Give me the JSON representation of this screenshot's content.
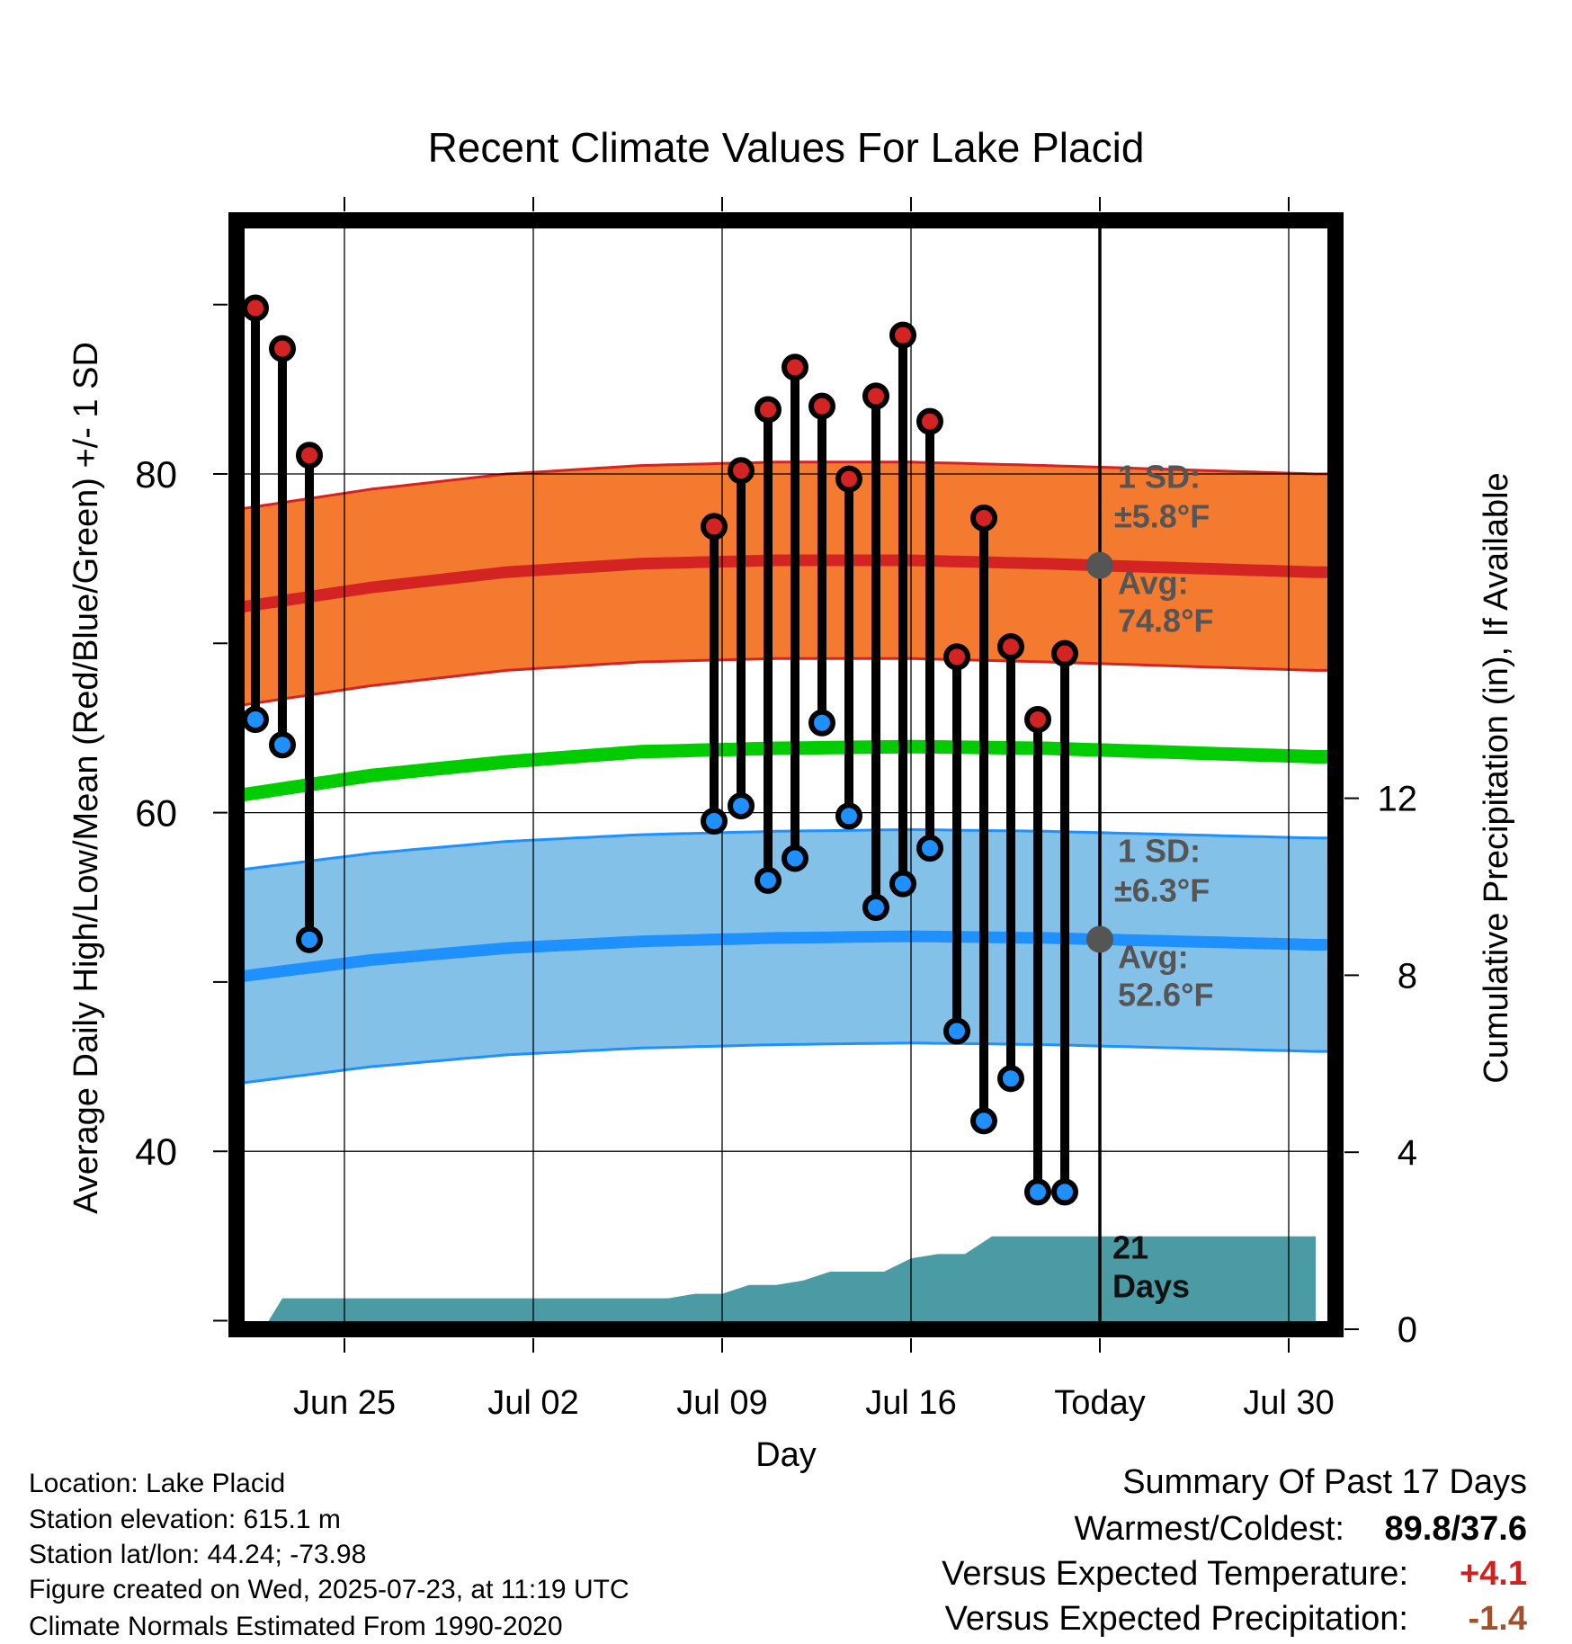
{
  "chart_data": {
    "type": "line",
    "title": "Recent Climate Values For Lake Placid",
    "xlabel": "Day",
    "ylabel": "Average Daily High/Low/Mean (Red/Blue/Green) +/- 1 SD",
    "y2label": "Cumulative Precipitation (in), If Available",
    "ylim": [
      30,
      95
    ],
    "y2lim": [
      0,
      24
    ],
    "xlim": [
      0,
      34
    ],
    "x_ticks": [
      {
        "day": 4,
        "label": "Jun 25"
      },
      {
        "day": 11,
        "label": "Jul 02"
      },
      {
        "day": 18,
        "label": "Jul 09"
      },
      {
        "day": 25,
        "label": "Jul 16"
      },
      {
        "day": 32,
        "label": "Today"
      },
      {
        "day": 39,
        "label": "Jul 30"
      }
    ],
    "y_ticks": [
      40,
      60,
      80
    ],
    "y2_ticks": [
      0,
      4,
      8,
      12
    ],
    "today_day": 32,
    "normal_high": {
      "avg": [
        72.1,
        73.3,
        74.2,
        74.7,
        74.9,
        74.9,
        74.7,
        74.2
      ],
      "sd_label": "1 SD:",
      "sd_text": "±5.8°F",
      "avg_label": "Avg:",
      "avg_text": "74.8°F",
      "color": "#d42323",
      "band_color": "#f47a2f"
    },
    "normal_low": {
      "avg": [
        50.3,
        51.3,
        52.0,
        52.4,
        52.6,
        52.7,
        52.6,
        52.2
      ],
      "sd_label": "1 SD:",
      "sd_text": "±6.3°F",
      "avg_label": "Avg:",
      "avg_text": "52.6°F",
      "color": "#1e90ff",
      "band_color": "#84c1e8"
    },
    "normal_mean": {
      "avg": [
        61.0,
        62.2,
        63.0,
        63.6,
        63.8,
        63.9,
        63.8,
        63.3
      ],
      "color": "#00cc00"
    },
    "normal_x": [
      0,
      5,
      10,
      15,
      20,
      25,
      30,
      40
    ],
    "observed": [
      {
        "day": 0.7,
        "high": 89.8,
        "low": 65.5
      },
      {
        "day": 1.7,
        "high": 87.4,
        "low": 64.0
      },
      {
        "day": 2.7,
        "high": 81.1,
        "low": 52.5
      },
      {
        "day": 17.7,
        "high": 76.9,
        "low": 59.5
      },
      {
        "day": 18.7,
        "high": 80.2,
        "low": 60.4
      },
      {
        "day": 19.7,
        "high": 83.8,
        "low": 56.0
      },
      {
        "day": 20.7,
        "high": 86.3,
        "low": 57.3
      },
      {
        "day": 21.7,
        "high": 84.0,
        "low": 65.3
      },
      {
        "day": 22.7,
        "high": 79.7,
        "low": 59.8
      },
      {
        "day": 23.7,
        "high": 84.6,
        "low": 54.4
      },
      {
        "day": 24.7,
        "high": 88.2,
        "low": 55.8
      },
      {
        "day": 25.7,
        "high": 83.1,
        "low": 57.9
      },
      {
        "day": 26.7,
        "high": 69.2,
        "low": 47.1
      },
      {
        "day": 27.7,
        "high": 77.4,
        "low": 41.8
      },
      {
        "day": 28.7,
        "high": 69.8,
        "low": 44.3
      },
      {
        "day": 29.7,
        "high": 65.5,
        "low": 37.6
      },
      {
        "day": 30.7,
        "high": 69.4,
        "low": 37.6
      }
    ],
    "precip_cumulative": {
      "x": [
        1,
        1.7,
        2,
        16,
        17,
        18,
        19,
        20,
        21,
        22,
        23,
        24,
        25,
        26,
        27,
        28,
        29,
        40
      ],
      "y": [
        0,
        0.7,
        0.7,
        0.7,
        0.8,
        0.8,
        1.0,
        1.0,
        1.1,
        1.3,
        1.3,
        1.3,
        1.6,
        1.7,
        1.7,
        2.1,
        2.1,
        2.1
      ],
      "color": "#4a9ba3"
    },
    "days_label_num": "21",
    "days_label_word": "Days"
  },
  "footer": {
    "location": "Location: Lake Placid",
    "elevation": "Station elevation: 615.1 m",
    "latlon": "Station lat/lon: 44.24; -73.98",
    "created": "Figure created on Wed, 2025-07-23, at 11:19 UTC",
    "normals": "Climate Normals Estimated From 1990-2020"
  },
  "summary": {
    "title": "Summary Of Past 17 Days",
    "warm_cold_label": "Warmest/Coldest:",
    "warm_cold_value": "89.8/37.6",
    "temp_label": "Versus Expected Temperature:",
    "temp_value": "+4.1",
    "temp_color": "#cc2222",
    "precip_label": "Versus Expected Precipitation:",
    "precip_value": "-1.4",
    "precip_color": "#a0522d"
  }
}
